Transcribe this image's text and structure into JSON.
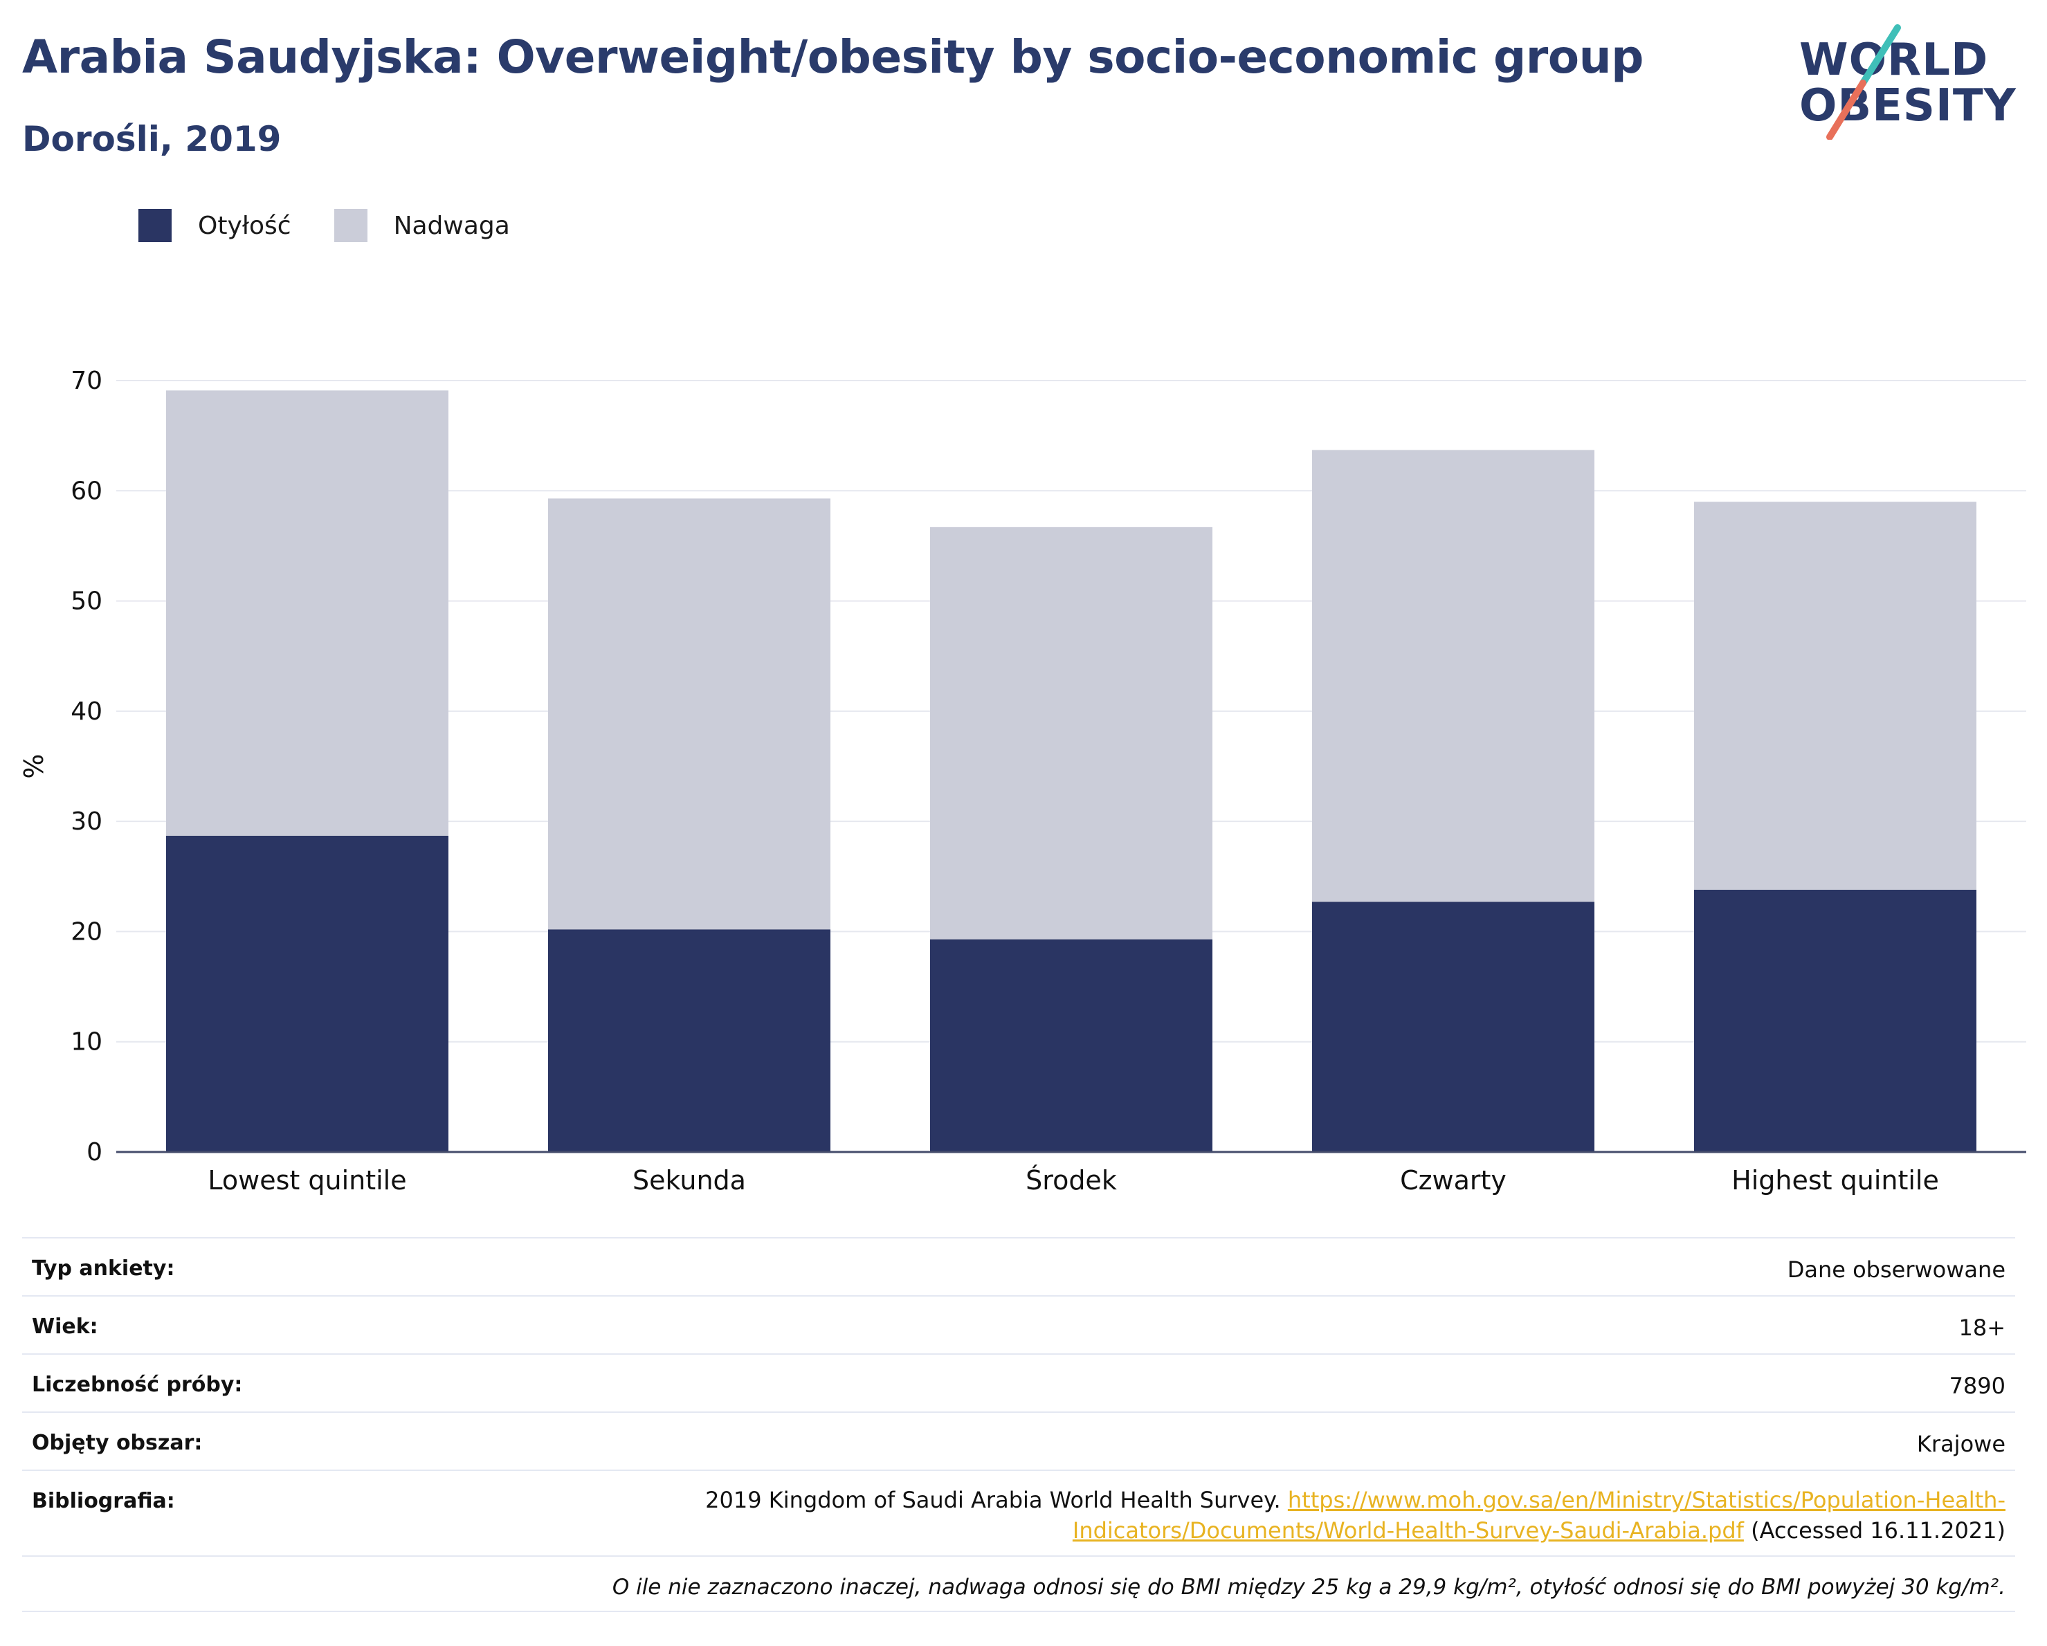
{
  "header": {
    "title": "Arabia Saudyjska: Overweight/obesity by socio-economic group",
    "subtitle": "Dorośli, 2019"
  },
  "logo": {
    "line1": "WORLD",
    "line2": "OBESITY"
  },
  "colors": {
    "obesity": "#2a3563",
    "overweight": "#cbcdd9",
    "title": "#2a3b6b",
    "link": "#e8b322",
    "logo_teal": "#3fbfb8",
    "logo_coral": "#e8705a"
  },
  "chart_data": {
    "type": "bar",
    "stacked": true,
    "categories": [
      "Lowest quintile",
      "Sekunda",
      "Środek",
      "Czwarty",
      "Highest quintile"
    ],
    "series": [
      {
        "name": "Otyłość",
        "values": [
          28.7,
          20.2,
          19.3,
          22.7,
          23.8
        ]
      },
      {
        "name": "Nadwaga",
        "values": [
          40.4,
          39.1,
          37.4,
          41.0,
          35.2
        ]
      }
    ],
    "ylabel": "%",
    "ylim": [
      0,
      70
    ],
    "yticks": [
      0,
      10,
      20,
      30,
      40,
      50,
      60,
      70
    ],
    "grid": true,
    "legend_position": "top-left"
  },
  "meta": {
    "rows": [
      {
        "label": "Typ ankiety:",
        "value": "Dane obserwowane"
      },
      {
        "label": "Wiek:",
        "value": "18+"
      },
      {
        "label": "Liczebność próby:",
        "value": "7890"
      },
      {
        "label": "Objęty obszar:",
        "value": "Krajowe"
      }
    ],
    "bibliography": {
      "label": "Bibliografia:",
      "text": "2019 Kingdom of Saudi Arabia World Health Survey.",
      "link_line1": "https://www.moh.gov.sa/en/Ministry/Statistics/Population-Health-",
      "link_line2": "Indicators/Documents/World-Health-Survey-Saudi-Arabia.pdf",
      "accessed": "(Accessed 16.11.2021)"
    },
    "note": "O ile nie zaznaczono inaczej, nadwaga odnosi się do BMI między 25 kg a 29,9 kg/m², otyłość odnosi się do BMI powyżej 30 kg/m²."
  }
}
